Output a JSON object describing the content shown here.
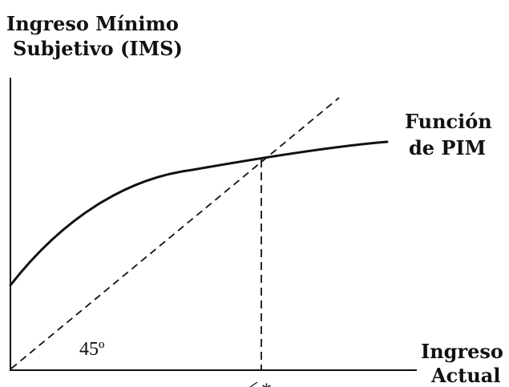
{
  "y_axis_label": [
    "Ingreso Mínimo",
    "Subjetivo (IMS)"
  ],
  "x_axis_label": [
    "Ingreso",
    "Actual"
  ],
  "curve_label": [
    "Función",
    "de PIM"
  ],
  "angle_label": "45º",
  "equilibrium_marker": "*",
  "colors": {
    "ink": "#111111",
    "background": "#ffffff"
  }
}
